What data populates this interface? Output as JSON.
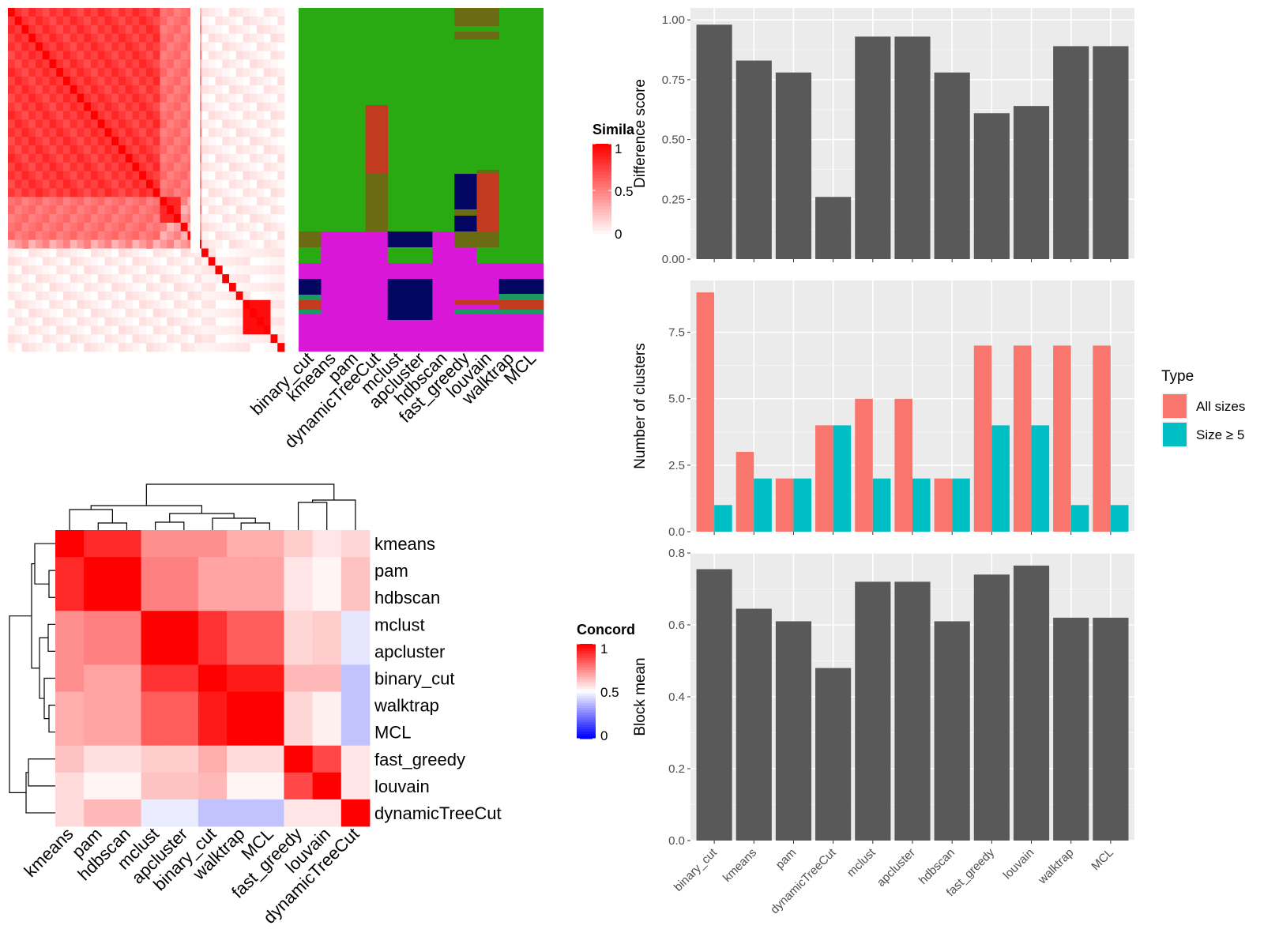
{
  "top_heatmap": {
    "legend_title": "Simila",
    "legend_ticks": [
      "1",
      "0.5",
      "0"
    ],
    "labels": [
      "binary_cut",
      "kmeans",
      "pam",
      "dynamicTreeCut",
      "mclust",
      "apcluster",
      "hdbscan",
      "fast_greedy",
      "louvain",
      "walktrap",
      "MCL"
    ],
    "colors": {
      "green": "#2aaa12",
      "olive": "#6b6b13",
      "red": "#c23a20",
      "magenta": "#d817d8",
      "navy": "#020660",
      "teal": "#1a9a60"
    }
  },
  "bottom_heatmap": {
    "legend_title": "Concord",
    "legend_ticks": [
      "1",
      "0.5",
      "0"
    ],
    "labels": [
      "kmeans",
      "pam",
      "hdbscan",
      "mclust",
      "apcluster",
      "binary_cut",
      "walktrap",
      "MCL",
      "fast_greedy",
      "louvain",
      "dynamicTreeCut"
    ]
  },
  "chart_data": [
    {
      "type": "bar",
      "categories": [
        "binary_cut",
        "kmeans",
        "pam",
        "dynamicTreeCut",
        "mclust",
        "apcluster",
        "hdbscan",
        "fast_greedy",
        "louvain",
        "walktrap",
        "MCL"
      ],
      "values": [
        0.98,
        0.83,
        0.78,
        0.26,
        0.93,
        0.93,
        0.78,
        0.61,
        0.64,
        0.89,
        0.89
      ],
      "ylabel": "Difference score",
      "ylim": [
        0,
        1.05
      ],
      "yticks": [
        "0.00",
        "0.25",
        "0.50",
        "0.75",
        "1.00"
      ],
      "bar_color": "#595959"
    },
    {
      "type": "bar",
      "categories": [
        "binary_cut",
        "kmeans",
        "pam",
        "dynamicTreeCut",
        "mclust",
        "apcluster",
        "hdbscan",
        "fast_greedy",
        "louvain",
        "walktrap",
        "MCL"
      ],
      "series": [
        {
          "name": "All sizes",
          "values": [
            9,
            3,
            2,
            4,
            5,
            5,
            2,
            7,
            7,
            7,
            7
          ],
          "color": "#f8766d"
        },
        {
          "name": "Size ≥ 5",
          "values": [
            1,
            2,
            2,
            4,
            2,
            2,
            2,
            4,
            4,
            1,
            1
          ],
          "color": "#00bfc4"
        }
      ],
      "ylabel": "Number of clusters",
      "legend_title": "Type",
      "ylim": [
        0,
        9.45
      ],
      "yticks": [
        "0.0",
        "2.5",
        "5.0",
        "7.5"
      ]
    },
    {
      "type": "bar",
      "categories": [
        "binary_cut",
        "kmeans",
        "pam",
        "dynamicTreeCut",
        "mclust",
        "apcluster",
        "hdbscan",
        "fast_greedy",
        "louvain",
        "walktrap",
        "MCL"
      ],
      "values": [
        0.755,
        0.645,
        0.61,
        0.48,
        0.72,
        0.72,
        0.61,
        0.74,
        0.765,
        0.62,
        0.62
      ],
      "ylabel": "Block mean",
      "ylim": [
        0,
        0.8
      ],
      "yticks": [
        "0.0",
        "0.2",
        "0.4",
        "0.6",
        "0.8"
      ],
      "bar_color": "#595959"
    }
  ]
}
